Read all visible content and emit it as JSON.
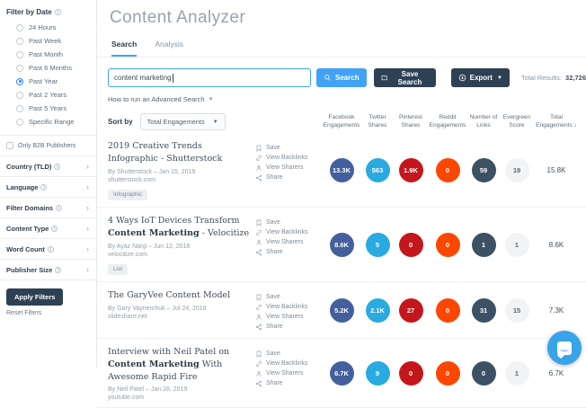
{
  "colors": {
    "accent_blue": "#41a2f6",
    "navy": "#2e4154",
    "facebook": "#44609c",
    "twitter": "#29aae1",
    "pinterest": "#c3171d",
    "reddit": "#fb4700",
    "links": "#3c5164",
    "evergreen": "#f1f3f4"
  },
  "sidebar": {
    "date_filter": {
      "label": "Filter by Date",
      "options": [
        "24 Hours",
        "Past Week",
        "Past Month",
        "Past 6 Months",
        "Past Year",
        "Past 2 Years",
        "Past 5 Years",
        "Specific Range"
      ],
      "selected": "Past Year"
    },
    "b2b_label": "Only B2B Publishers",
    "sections": [
      "Country (TLD)",
      "Language",
      "Filter Domains",
      "Content Type",
      "Word Count",
      "Publisher Size"
    ],
    "apply_label": "Apply Filters",
    "reset_label": "Reset Filters"
  },
  "header": {
    "title": "Content Analyzer",
    "tabs": [
      {
        "label": "Search",
        "active": true
      },
      {
        "label": "Analysis",
        "active": false
      }
    ]
  },
  "search": {
    "value": "content marketing",
    "search_label": "Search",
    "save_label": "Save Search",
    "export_label": "Export",
    "total_results_label": "Total Results:",
    "total_results_value": "32,726",
    "advanced_label": "How to run an Advanced Search"
  },
  "sort": {
    "label": "Sort by",
    "value": "Total Engagements"
  },
  "columns": [
    {
      "label": "Facebook Engagements"
    },
    {
      "label": "Twitter Shares"
    },
    {
      "label": "Pinterest Shares"
    },
    {
      "label": "Reddit Engagements"
    },
    {
      "label": "Number of Links"
    },
    {
      "label": "Evergreen Score"
    },
    {
      "label": "Total Engagements",
      "sort_arrow": "↓"
    }
  ],
  "actions": [
    {
      "label": "Save",
      "icon": "bookmark-icon"
    },
    {
      "label": "View Backlinks",
      "icon": "backlink-icon"
    },
    {
      "label": "View Sharers",
      "icon": "sharers-icon"
    },
    {
      "label": "Share",
      "icon": "share-icon"
    }
  ],
  "results": [
    {
      "title": [
        {
          "text": "2019 Creative Trends Infographic - Shutterstock",
          "bold": false
        }
      ],
      "byline": "By Shutterstock – Jan 15, 2019",
      "domain": "shutterstock.com",
      "tag": "Infographic",
      "stats": {
        "facebook": "13.3K",
        "twitter": "563",
        "pinterest": "1.9K",
        "reddit": "0",
        "links": "59",
        "evergreen": "19",
        "total": "15.8K"
      }
    },
    {
      "title": [
        {
          "text": "4 Ways IoT Devices Transform ",
          "bold": false
        },
        {
          "text": "Content Marketing",
          "bold": true
        },
        {
          "text": " - Velocitize",
          "bold": false
        }
      ],
      "byline": "By Ayaz Nanji – Jun 12, 2018",
      "domain": "velocitize.com",
      "tag": "List",
      "stats": {
        "facebook": "8.6K",
        "twitter": "5",
        "pinterest": "0",
        "reddit": "0",
        "links": "1",
        "evergreen": "1",
        "total": "8.6K"
      }
    },
    {
      "title": [
        {
          "text": "The GaryVee Content Model",
          "bold": false
        }
      ],
      "byline": "By Gary Vaynerchuk – Jul 24, 2018",
      "domain": "slideshare.net",
      "tag": null,
      "stats": {
        "facebook": "5.2K",
        "twitter": "2.1K",
        "pinterest": "27",
        "reddit": "0",
        "links": "31",
        "evergreen": "15",
        "total": "7.3K"
      }
    },
    {
      "title": [
        {
          "text": "Interview with Neil Patel on ",
          "bold": false
        },
        {
          "text": "Content Marketing",
          "bold": true
        },
        {
          "text": " With Awesome Rapid Fire",
          "bold": false
        }
      ],
      "byline": "By Neil Patel – Jan 28, 2019",
      "domain": "youtube.com",
      "tag": null,
      "stats": {
        "facebook": "6.7K",
        "twitter": "9",
        "pinterest": "0",
        "reddit": "0",
        "links": "0",
        "evergreen": "1",
        "total": "6.7K"
      }
    }
  ]
}
